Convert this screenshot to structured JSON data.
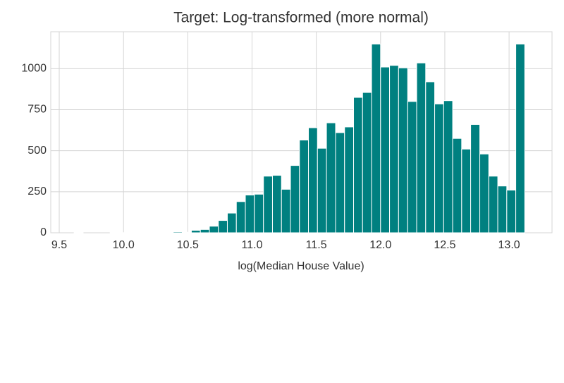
{
  "chart_data": {
    "type": "histogram",
    "title": "Target: Log-transformed (more normal)",
    "xlabel": "log(Median House Value)",
    "bins": [
      9.616,
      9.686,
      9.756,
      9.826,
      9.896,
      9.967,
      10.037,
      10.107,
      10.177,
      10.247,
      10.317,
      10.387,
      10.457,
      10.528,
      10.598,
      10.668,
      10.738,
      10.808,
      10.878,
      10.948,
      11.018,
      11.089,
      11.159,
      11.229,
      11.299,
      11.369,
      11.439,
      11.509,
      11.579,
      11.65,
      11.72,
      11.79,
      11.86,
      11.93,
      12.0,
      12.07,
      12.14,
      12.211,
      12.281,
      12.351,
      12.421,
      12.491,
      12.561,
      12.631,
      12.701,
      12.772,
      12.842,
      12.912,
      12.982,
      13.052,
      13.122
    ],
    "values": [
      1,
      0,
      0,
      0,
      1,
      1,
      2,
      2,
      3,
      3,
      3,
      6,
      3,
      15,
      20,
      40,
      75,
      120,
      190,
      230,
      235,
      345,
      350,
      265,
      410,
      565,
      640,
      515,
      670,
      610,
      645,
      825,
      855,
      1150,
      1010,
      1020,
      1005,
      800,
      1035,
      920,
      785,
      805,
      575,
      510,
      660,
      480,
      345,
      285,
      260,
      1150
    ],
    "color": "#008080",
    "edgecolor": "#ffffff",
    "xlim": [
      9.434,
      13.334
    ],
    "ylim": [
      0,
      1225
    ],
    "xticks": [
      9.5,
      {
        "value": 10,
        "label": "10.0"
      },
      10.5,
      {
        "value": 11,
        "label": "11.0"
      },
      11.5,
      {
        "value": 12,
        "label": "12.0"
      },
      12.5,
      {
        "value": 13,
        "label": "13.0"
      }
    ],
    "yticks": [
      0,
      250,
      500,
      750,
      1000
    ],
    "grid": true
  }
}
